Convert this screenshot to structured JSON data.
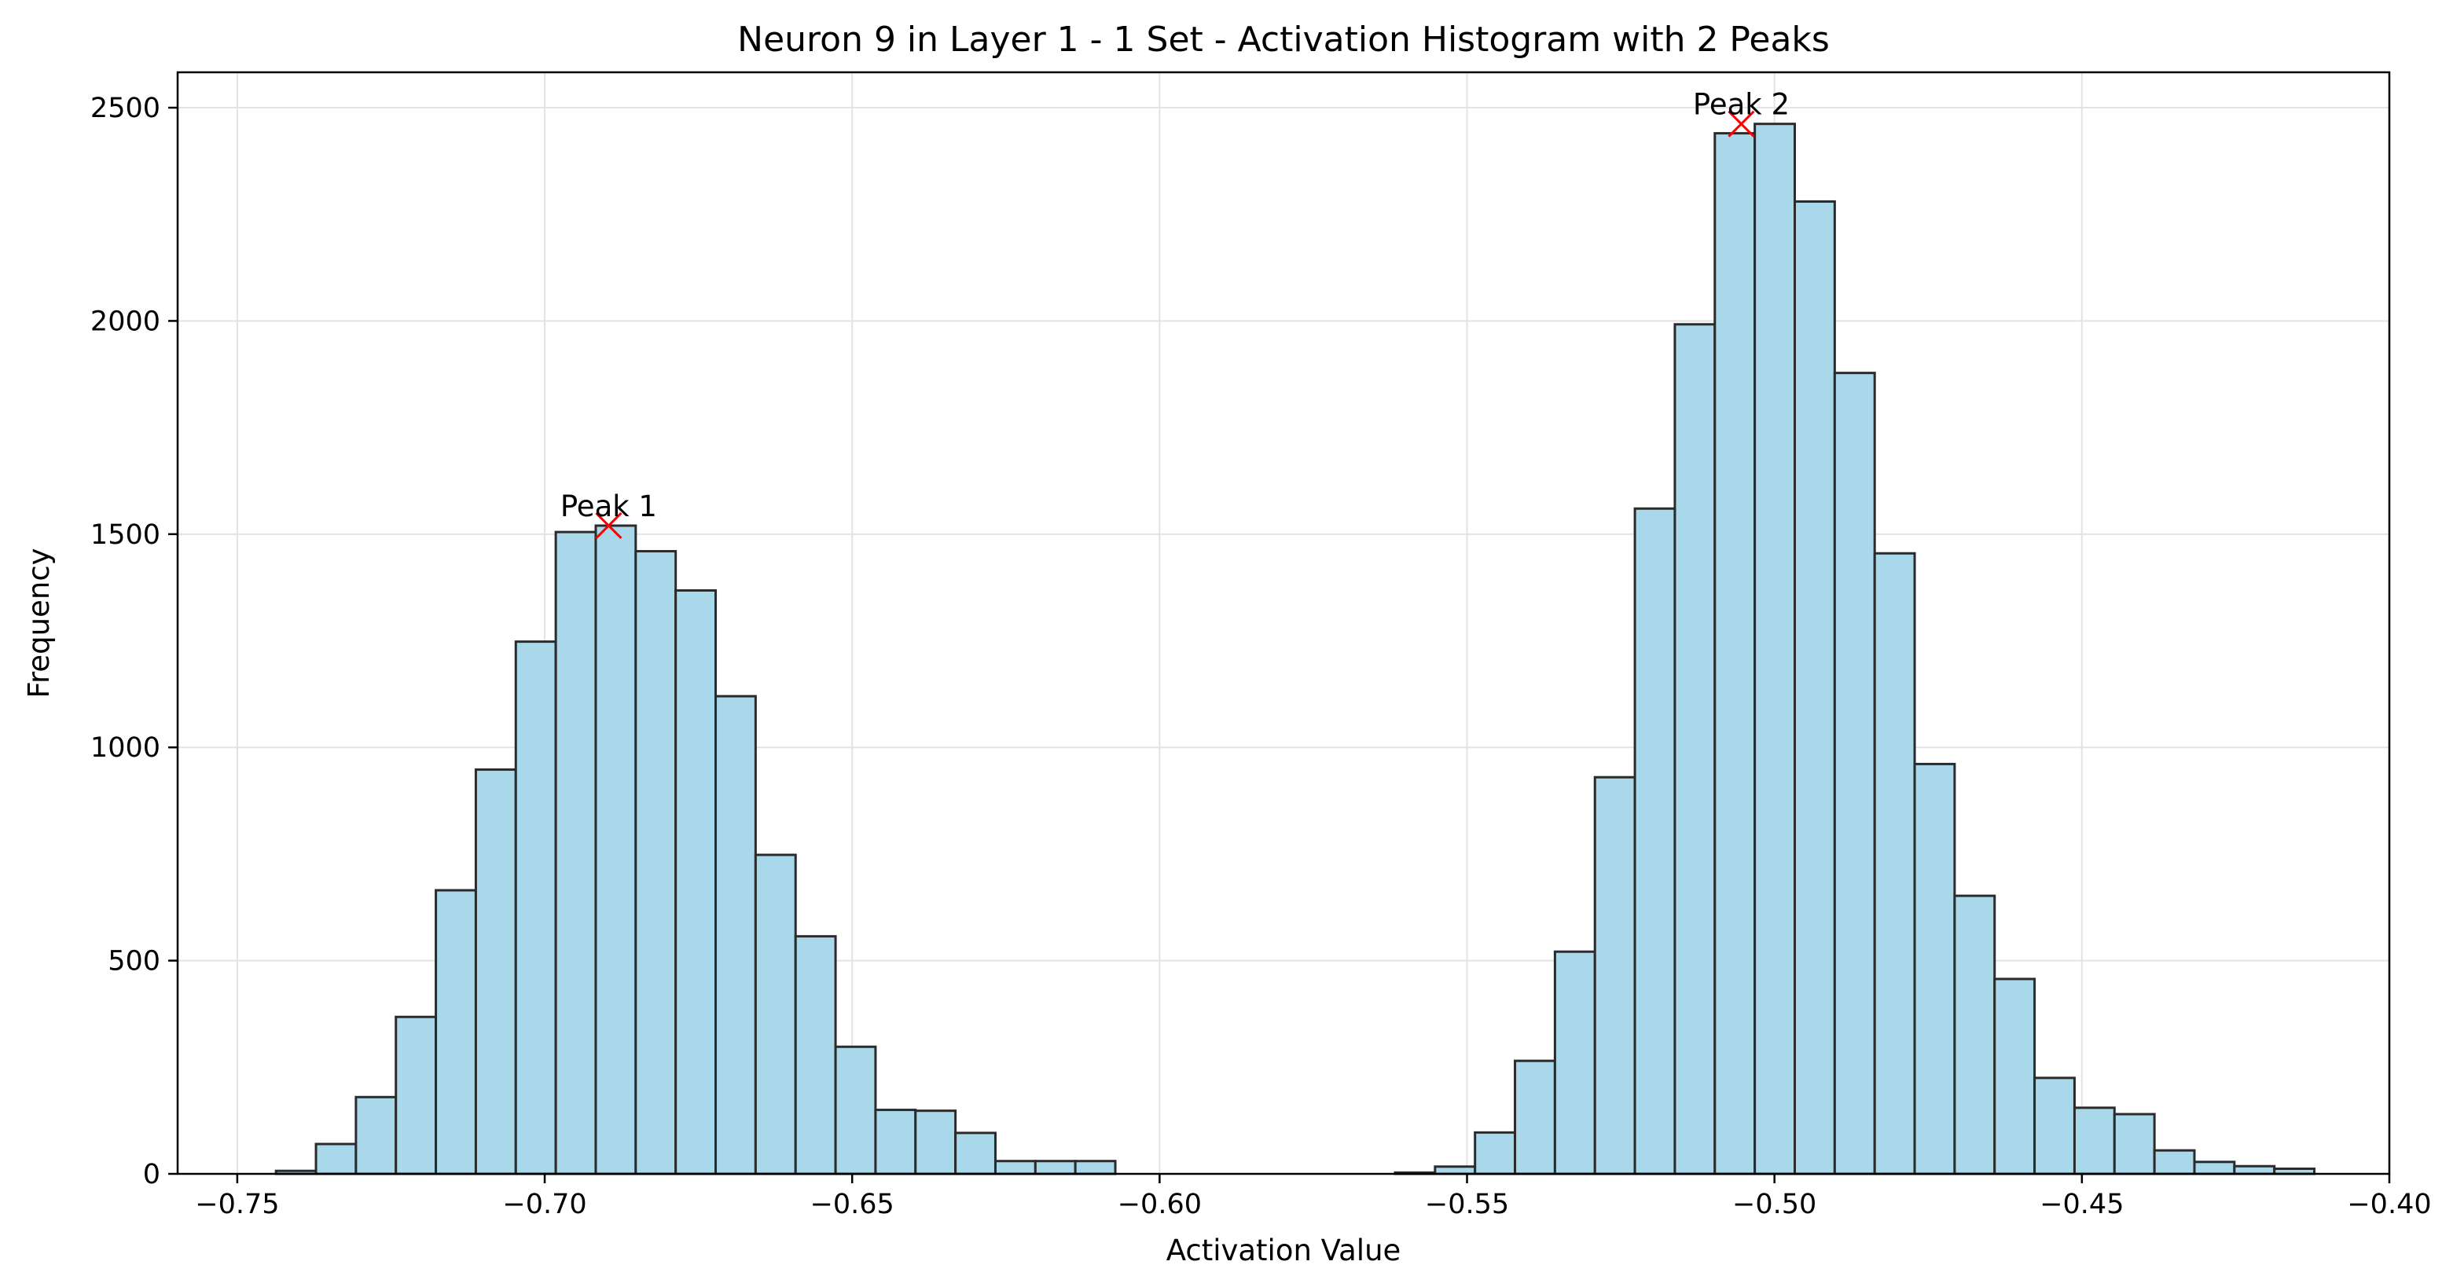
{
  "chart_data": {
    "type": "bar",
    "title": "Neuron 9 in Layer 1 - 1 Set - Activation Histogram with 2 Peaks",
    "xlabel": "Activation Value",
    "ylabel": "Frequency",
    "xlim": [
      -0.7597,
      -0.4
    ],
    "ylim": [
      0,
      2583
    ],
    "xticks": [
      -0.75,
      -0.7,
      -0.65,
      -0.6,
      -0.55,
      -0.5,
      -0.45,
      -0.4
    ],
    "xtick_labels": [
      "−0.75",
      "−0.70",
      "−0.65",
      "−0.60",
      "−0.55",
      "−0.50",
      "−0.45",
      "−0.40"
    ],
    "yticks": [
      0,
      500,
      1000,
      1500,
      2000,
      2500
    ],
    "ytick_labels": [
      "0",
      "500",
      "1000",
      "1500",
      "2000",
      "2500"
    ],
    "grid": true,
    "bar_color": "#a8d8ea",
    "edge_color": "#2b2b2b",
    "marker_color": "#ff0000",
    "bins": {
      "start": -0.7437,
      "width": 0.0065,
      "counts": [
        7,
        70,
        180,
        368,
        665,
        948,
        1248,
        1505,
        1520,
        1460,
        1368,
        1120,
        748,
        557,
        298,
        150,
        148,
        96,
        30,
        30,
        30,
        0,
        0,
        0,
        0,
        0,
        0,
        0,
        3,
        17,
        97,
        265,
        521,
        930,
        1560,
        1992,
        2440,
        2462,
        2280,
        1878,
        1455,
        961,
        652,
        457,
        225,
        155,
        140,
        55,
        28,
        18,
        12
      ]
    },
    "peaks": [
      {
        "label": "Peak 1",
        "x": -0.6896,
        "y": 1520
      },
      {
        "label": "Peak 2",
        "x": -0.5054,
        "y": 2462
      }
    ]
  }
}
